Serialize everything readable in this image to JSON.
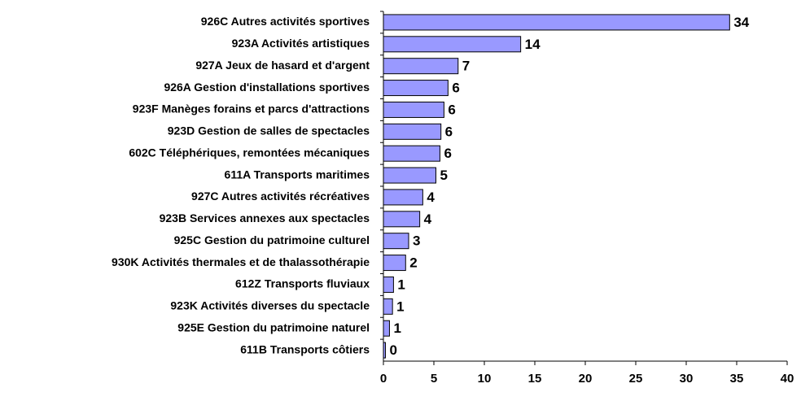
{
  "chart_data": {
    "type": "hbar",
    "categories": [
      "926C Autres activités sportives",
      "923A Activités artistiques",
      "927A Jeux de hasard et d'argent",
      "926A Gestion d'installations sportives",
      "923F Manèges forains et parcs d'attractions",
      "923D Gestion de salles de spectacles",
      "602C Téléphériques, remontées mécaniques",
      "611A Transports maritimes",
      "927C Autres activités récréatives",
      "923B Services annexes aux spectacles",
      "925C Gestion du patrimoine culturel",
      "930K Activités thermales et de thalassothérapie",
      "612Z Transports fluviaux",
      "923K Activités diverses du spectacle",
      "925E Gestion du patrimoine naturel",
      "611B Transports côtiers"
    ],
    "values": [
      34.3,
      13.6,
      7.4,
      6.4,
      6.0,
      5.7,
      5.6,
      5.2,
      3.9,
      3.6,
      2.5,
      2.2,
      1.0,
      0.9,
      0.6,
      0.2
    ],
    "value_labels": [
      "34",
      "14",
      "7",
      "6",
      "6",
      "6",
      "6",
      "5",
      "4",
      "4",
      "3",
      "2",
      "1",
      "1",
      "1",
      "0"
    ],
    "color": "#9999ff",
    "xlim": [
      0,
      40
    ],
    "xticks": [
      0,
      5,
      10,
      15,
      20,
      25,
      30,
      35,
      40
    ]
  }
}
